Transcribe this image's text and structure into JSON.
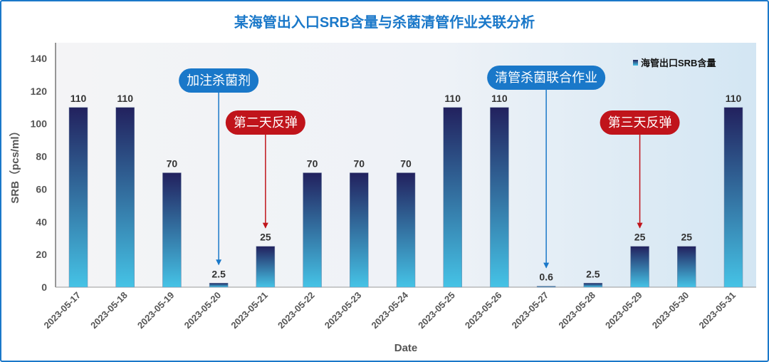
{
  "chart_data": {
    "type": "bar",
    "title": "某海管出入口SRB含量与杀菌清管作业关联分析",
    "xlabel": "Date",
    "ylabel": "SRB（pcs/ml）",
    "ylim": [
      0,
      140
    ],
    "yticks": [
      0,
      20,
      40,
      60,
      80,
      100,
      120,
      140
    ],
    "grid": false,
    "legend_position": "top-right",
    "categories": [
      "2023-05-17",
      "2023-05-18",
      "2023-05-19",
      "2023-05-20",
      "2023-05-21",
      "2023-05-22",
      "2023-05-23",
      "2023-05-24",
      "2023-05-25",
      "2023-05-26",
      "2023-05-27",
      "2023-05-28",
      "2023-05-29",
      "2023-05-30",
      "2023-05-31"
    ],
    "series": [
      {
        "name": "海管出口SRB含量",
        "values": [
          110,
          110,
          70,
          2.5,
          25,
          70,
          70,
          70,
          110,
          110,
          0.6,
          2.5,
          25,
          25,
          110
        ],
        "data_labels": [
          "110",
          "110",
          "70",
          "2.5",
          "25",
          "70",
          "70",
          "70",
          "110",
          "110",
          "0.6",
          "2.5",
          "25",
          "25",
          "110"
        ]
      }
    ],
    "annotations": [
      {
        "text": "加注杀菌剂",
        "category": "2023-05-20",
        "style": "blue"
      },
      {
        "text": "第二天反弹",
        "category": "2023-05-21",
        "style": "red"
      },
      {
        "text": "清管杀菌联合作业",
        "category": "2023-05-27",
        "style": "blue"
      },
      {
        "text": "第三天反弹",
        "category": "2023-05-29",
        "style": "red"
      }
    ],
    "colors": {
      "bar_top": "#22215e",
      "bar_bottom": "#45c3e6",
      "blue_note": "#1a78c9",
      "red_note": "#c0141b",
      "title": "#1a78c9"
    }
  }
}
